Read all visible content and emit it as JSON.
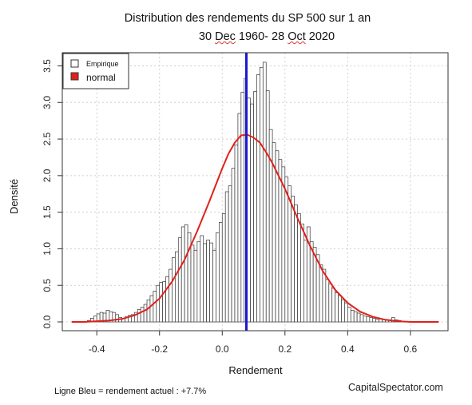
{
  "colors": {
    "bar_fill": "#ffffff",
    "bar_stroke": "#333333",
    "normal_curve": "#e0201b",
    "current_line": "#1a1acd",
    "grid": "#cfcfcf"
  },
  "chart_data": {
    "type": "bar",
    "title": "Distribution des rendements du SP 500 sur 1 an",
    "subtitle_parts": [
      "30 ",
      "Dec",
      " 1960- 28 ",
      "Oct",
      " 2020"
    ],
    "xlabel": "Rendement",
    "ylabel": "Densité",
    "xlim": [
      -0.51,
      0.72
    ],
    "ylim": [
      -0.12,
      3.68
    ],
    "x_ticks": [
      -0.4,
      -0.2,
      0.0,
      0.2,
      0.4,
      0.6
    ],
    "x_tick_labels": [
      "-0.4",
      "-0.2",
      "0.0",
      "0.2",
      "0.4",
      "0.6"
    ],
    "y_ticks": [
      0.0,
      0.5,
      1.0,
      1.5,
      2.0,
      2.5,
      3.0,
      3.5
    ],
    "y_tick_labels": [
      "0.0",
      "0.5",
      "1.0",
      "1.5",
      "2.0",
      "2.5",
      "3.0",
      "3.5"
    ],
    "grid": true,
    "legend_position": "top-left",
    "legend": [
      {
        "label": "Empirique",
        "kind": "box"
      },
      {
        "label": "normal",
        "kind": "filled"
      }
    ],
    "bin_width": 0.01,
    "bins": [
      {
        "x0": -0.43,
        "v": 0.02
      },
      {
        "x0": -0.42,
        "v": 0.05
      },
      {
        "x0": -0.41,
        "v": 0.08
      },
      {
        "x0": -0.4,
        "v": 0.11
      },
      {
        "x0": -0.39,
        "v": 0.13
      },
      {
        "x0": -0.38,
        "v": 0.12
      },
      {
        "x0": -0.37,
        "v": 0.16
      },
      {
        "x0": -0.36,
        "v": 0.14
      },
      {
        "x0": -0.35,
        "v": 0.13
      },
      {
        "x0": -0.34,
        "v": 0.1
      },
      {
        "x0": -0.33,
        "v": 0.06
      },
      {
        "x0": -0.32,
        "v": 0.05
      },
      {
        "x0": -0.31,
        "v": 0.07
      },
      {
        "x0": -0.3,
        "v": 0.09
      },
      {
        "x0": -0.29,
        "v": 0.1
      },
      {
        "x0": -0.28,
        "v": 0.13
      },
      {
        "x0": -0.27,
        "v": 0.17
      },
      {
        "x0": -0.26,
        "v": 0.2
      },
      {
        "x0": -0.25,
        "v": 0.24
      },
      {
        "x0": -0.24,
        "v": 0.3
      },
      {
        "x0": -0.23,
        "v": 0.36
      },
      {
        "x0": -0.22,
        "v": 0.42
      },
      {
        "x0": -0.21,
        "v": 0.5
      },
      {
        "x0": -0.2,
        "v": 0.54
      },
      {
        "x0": -0.19,
        "v": 0.55
      },
      {
        "x0": -0.18,
        "v": 0.62
      },
      {
        "x0": -0.17,
        "v": 0.72
      },
      {
        "x0": -0.16,
        "v": 0.88
      },
      {
        "x0": -0.15,
        "v": 0.96
      },
      {
        "x0": -0.14,
        "v": 1.15
      },
      {
        "x0": -0.13,
        "v": 1.3
      },
      {
        "x0": -0.12,
        "v": 1.33
      },
      {
        "x0": -0.11,
        "v": 1.22
      },
      {
        "x0": -0.1,
        "v": 1.05
      },
      {
        "x0": -0.09,
        "v": 0.98
      },
      {
        "x0": -0.08,
        "v": 1.1
      },
      {
        "x0": -0.07,
        "v": 1.18
      },
      {
        "x0": -0.06,
        "v": 1.07
      },
      {
        "x0": -0.05,
        "v": 1.12
      },
      {
        "x0": -0.04,
        "v": 1.08
      },
      {
        "x0": -0.03,
        "v": 0.98
      },
      {
        "x0": -0.02,
        "v": 1.22
      },
      {
        "x0": -0.01,
        "v": 1.36
      },
      {
        "x0": 0.0,
        "v": 1.48
      },
      {
        "x0": 0.01,
        "v": 1.78
      },
      {
        "x0": 0.02,
        "v": 1.86
      },
      {
        "x0": 0.03,
        "v": 2.1
      },
      {
        "x0": 0.04,
        "v": 2.42
      },
      {
        "x0": 0.05,
        "v": 2.85
      },
      {
        "x0": 0.06,
        "v": 3.14
      },
      {
        "x0": 0.07,
        "v": 3.33
      },
      {
        "x0": 0.08,
        "v": 3.06
      },
      {
        "x0": 0.09,
        "v": 2.98
      },
      {
        "x0": 0.1,
        "v": 3.15
      },
      {
        "x0": 0.11,
        "v": 3.38
      },
      {
        "x0": 0.12,
        "v": 3.48
      },
      {
        "x0": 0.13,
        "v": 3.55
      },
      {
        "x0": 0.14,
        "v": 3.16
      },
      {
        "x0": 0.15,
        "v": 2.63
      },
      {
        "x0": 0.16,
        "v": 2.45
      },
      {
        "x0": 0.17,
        "v": 2.34
      },
      {
        "x0": 0.18,
        "v": 2.22
      },
      {
        "x0": 0.19,
        "v": 2.12
      },
      {
        "x0": 0.2,
        "v": 1.98
      },
      {
        "x0": 0.21,
        "v": 1.86
      },
      {
        "x0": 0.22,
        "v": 1.72
      },
      {
        "x0": 0.23,
        "v": 1.6
      },
      {
        "x0": 0.24,
        "v": 1.48
      },
      {
        "x0": 0.25,
        "v": 1.34
      },
      {
        "x0": 0.26,
        "v": 1.12
      },
      {
        "x0": 0.27,
        "v": 1.3
      },
      {
        "x0": 0.28,
        "v": 1.1
      },
      {
        "x0": 0.29,
        "v": 1.02
      },
      {
        "x0": 0.3,
        "v": 0.92
      },
      {
        "x0": 0.31,
        "v": 0.78
      },
      {
        "x0": 0.32,
        "v": 0.72
      },
      {
        "x0": 0.33,
        "v": 0.58
      },
      {
        "x0": 0.34,
        "v": 0.52
      },
      {
        "x0": 0.35,
        "v": 0.46
      },
      {
        "x0": 0.36,
        "v": 0.4
      },
      {
        "x0": 0.37,
        "v": 0.36
      },
      {
        "x0": 0.38,
        "v": 0.3
      },
      {
        "x0": 0.39,
        "v": 0.26
      },
      {
        "x0": 0.4,
        "v": 0.2
      },
      {
        "x0": 0.41,
        "v": 0.16
      },
      {
        "x0": 0.42,
        "v": 0.14
      },
      {
        "x0": 0.43,
        "v": 0.12
      },
      {
        "x0": 0.44,
        "v": 0.1
      },
      {
        "x0": 0.45,
        "v": 0.08
      },
      {
        "x0": 0.46,
        "v": 0.07
      },
      {
        "x0": 0.47,
        "v": 0.06
      },
      {
        "x0": 0.48,
        "v": 0.05
      },
      {
        "x0": 0.49,
        "v": 0.04
      },
      {
        "x0": 0.5,
        "v": 0.04
      },
      {
        "x0": 0.51,
        "v": 0.03
      },
      {
        "x0": 0.52,
        "v": 0.03
      },
      {
        "x0": 0.53,
        "v": 0.03
      },
      {
        "x0": 0.54,
        "v": 0.06
      },
      {
        "x0": 0.55,
        "v": 0.03
      },
      {
        "x0": 0.56,
        "v": 0.02
      },
      {
        "x0": 0.57,
        "v": 0.01
      }
    ],
    "normal_curve": {
      "x": [
        -0.48,
        -0.44,
        -0.4,
        -0.36,
        -0.32,
        -0.28,
        -0.24,
        -0.2,
        -0.16,
        -0.12,
        -0.08,
        -0.04,
        0.0,
        0.02,
        0.04,
        0.06,
        0.08,
        0.1,
        0.12,
        0.14,
        0.16,
        0.2,
        0.24,
        0.28,
        0.32,
        0.36,
        0.4,
        0.44,
        0.48,
        0.52,
        0.56,
        0.6,
        0.64,
        0.69
      ],
      "y": [
        0.0,
        0.0,
        0.01,
        0.02,
        0.04,
        0.09,
        0.17,
        0.32,
        0.55,
        0.85,
        1.24,
        1.66,
        2.1,
        2.3,
        2.45,
        2.55,
        2.56,
        2.52,
        2.45,
        2.32,
        2.17,
        1.82,
        1.42,
        1.04,
        0.7,
        0.44,
        0.26,
        0.14,
        0.07,
        0.03,
        0.01,
        0.0,
        0.0,
        0.0
      ]
    },
    "current_return": 0.077,
    "annotation": "Ligne Bleu = rendement actuel : +7.7%",
    "credit": "CapitalSpectator.com"
  }
}
